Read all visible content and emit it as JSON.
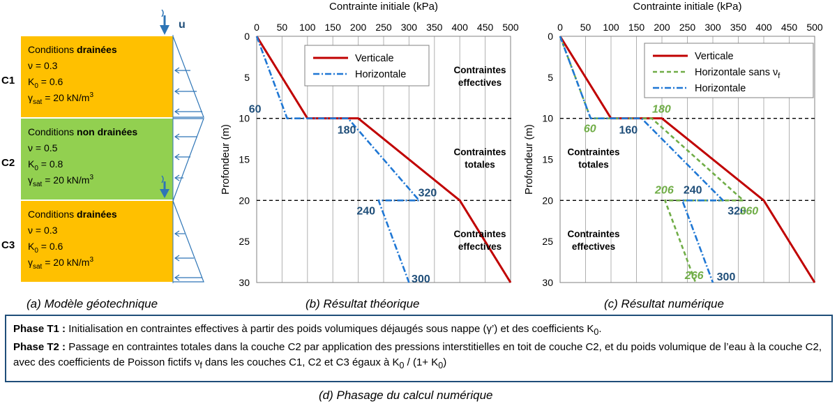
{
  "model": {
    "arrow_label": "u",
    "layers": [
      {
        "name": "C1",
        "cond_prefix": "Conditions ",
        "cond_bold": "drainées",
        "nu": "ν = 0.3",
        "k0_main": "K",
        "k0_sub": "0",
        "k0_val": " = 0.6",
        "gamma_main": "γ",
        "gamma_sub": "sat",
        "gamma_val": " = 20 kN/m",
        "gamma_sup": "3",
        "color": "#ffc000"
      },
      {
        "name": "C2",
        "cond_prefix": "Conditions ",
        "cond_bold": "non drainées",
        "nu": "ν = 0.5",
        "k0_main": "K",
        "k0_sub": "0",
        "k0_val": " = 0.8",
        "gamma_main": "γ",
        "gamma_sub": "sat",
        "gamma_val": " = 20 kN/m",
        "gamma_sup": "3",
        "color": "#92d050"
      },
      {
        "name": "C3",
        "cond_prefix": "Conditions ",
        "cond_bold": "drainées",
        "nu": "ν = 0.3",
        "k0_main": "K",
        "k0_sub": "0",
        "k0_val": " = 0.6",
        "gamma_main": "γ",
        "gamma_sub": "sat",
        "gamma_val": " = 20 kN/m",
        "gamma_sup": "3",
        "color": "#ffc000"
      }
    ]
  },
  "captions": {
    "a": "(a) Modèle géotechnique",
    "b": "(b) Résultat théorique",
    "c": "(c) Résultat numérique",
    "d": "(d) Phasage du calcul numérique"
  },
  "phases": {
    "t1_label": "Phase T1 :",
    "t1_text": " Initialisation en contraintes effectives à partir des poids volumiques déjaugés sous nappe (γ’) et des coefficients K",
    "t1_sub": "0",
    "t1_end": ".",
    "t2_label": "Phase T2 :",
    "t2_text1": " Passage en contraintes totales dans la couche C2 par application des pressions interstitielles en toit de couche C2, et du poids volumique de l’eau à la couche C2, avec des coefficients de Poisson fictifs ν",
    "t2_sub1": "f",
    "t2_text2": " dans les couches C1, C2 et C3 égaux à K",
    "t2_sub2": "0",
    "t2_text3": " / (1+ K",
    "t2_sub3": "0",
    "t2_text4": ")"
  },
  "chart_data": [
    {
      "type": "line",
      "title": "Contrainte initiale (kPa)",
      "xlabel": "Contrainte initiale (kPa)",
      "ylabel": "Profondeur (m)",
      "xlim": [
        0,
        500
      ],
      "ylim": [
        0,
        30
      ],
      "x_ticks": [
        0,
        50,
        100,
        150,
        200,
        250,
        300,
        350,
        400,
        450,
        500
      ],
      "y_ticks": [
        0,
        5,
        10,
        15,
        20,
        25,
        30
      ],
      "grid": "vertical",
      "legend_position": "top-right",
      "horizontal_reference_lines": [
        10,
        20
      ],
      "series": [
        {
          "name": "Verticale",
          "color": "#c00000",
          "style": "solid",
          "points": [
            [
              0,
              0
            ],
            [
              100,
              10
            ],
            [
              200,
              10
            ],
            [
              400,
              20
            ],
            [
              500,
              30
            ]
          ]
        },
        {
          "name": "Horizontale",
          "color": "#1f77d4",
          "style": "dashdot",
          "points": [
            [
              0,
              0
            ],
            [
              60,
              10
            ],
            [
              180,
              10
            ],
            [
              320,
              20
            ],
            [
              240,
              20
            ],
            [
              300,
              30
            ]
          ]
        }
      ],
      "annotations": [
        {
          "text": "60",
          "x": 60,
          "y": 10,
          "color": "#1f4e79"
        },
        {
          "text": "180",
          "x": 180,
          "y": 10,
          "color": "#1f4e79"
        },
        {
          "text": "320",
          "x": 320,
          "y": 20,
          "color": "#1f4e79"
        },
        {
          "text": "240",
          "x": 240,
          "y": 20,
          "color": "#1f4e79"
        },
        {
          "text": "300",
          "x": 300,
          "y": 30,
          "color": "#1f4e79"
        }
      ],
      "zones": [
        {
          "lines": [
            "Contraintes",
            "effectives"
          ],
          "y": 5,
          "bold": true
        },
        {
          "lines": [
            "Contraintes",
            "totales"
          ],
          "y": 15,
          "bold": true
        },
        {
          "lines": [
            "Contraintes",
            "effectives"
          ],
          "y": 25,
          "bold": true
        }
      ]
    },
    {
      "type": "line",
      "title": "Contrainte initiale (kPa)",
      "xlabel": "Contrainte initiale (kPa)",
      "ylabel": "Profondeur (m)",
      "xlim": [
        0,
        500
      ],
      "ylim": [
        0,
        30
      ],
      "x_ticks": [
        0,
        50,
        100,
        150,
        200,
        250,
        300,
        350,
        400,
        450,
        500
      ],
      "y_ticks": [
        0,
        5,
        10,
        15,
        20,
        25,
        30
      ],
      "grid": "vertical",
      "legend_position": "top-right",
      "horizontal_reference_lines": [
        10,
        20
      ],
      "series": [
        {
          "name": "Verticale",
          "color": "#c00000",
          "style": "solid",
          "points": [
            [
              0,
              0
            ],
            [
              100,
              10
            ],
            [
              200,
              10
            ],
            [
              400,
              20
            ],
            [
              500,
              30
            ]
          ]
        },
        {
          "name": "Horizontale sans ν",
          "name_sub": "f",
          "color": "#70ad47",
          "style": "dashed",
          "points": [
            [
              0,
              0
            ],
            [
              60,
              10
            ],
            [
              180,
              10
            ],
            [
              360,
              20
            ],
            [
              206,
              20
            ],
            [
              266,
              30
            ]
          ]
        },
        {
          "name": "Horizontale",
          "color": "#1f77d4",
          "style": "dashdot",
          "points": [
            [
              0,
              0
            ],
            [
              60,
              10
            ],
            [
              160,
              10
            ],
            [
              320,
              20
            ],
            [
              240,
              20
            ],
            [
              300,
              30
            ]
          ]
        }
      ],
      "annotations": [
        {
          "text": "180",
          "x": 180,
          "y": 10,
          "color": "#70ad47"
        },
        {
          "text": "60",
          "x": 60,
          "y": 10,
          "color": "#70ad47"
        },
        {
          "text": "160",
          "x": 160,
          "y": 10,
          "color": "#1f4e79"
        },
        {
          "text": "206",
          "x": 206,
          "y": 20,
          "color": "#70ad47"
        },
        {
          "text": "240",
          "x": 240,
          "y": 20,
          "color": "#1f4e79"
        },
        {
          "text": "320",
          "x": 320,
          "y": 20,
          "color": "#1f4e79"
        },
        {
          "text": "360",
          "x": 360,
          "y": 20,
          "color": "#70ad47"
        },
        {
          "text": "266",
          "x": 266,
          "y": 30,
          "color": "#70ad47"
        },
        {
          "text": "300",
          "x": 300,
          "y": 30,
          "color": "#1f4e79"
        }
      ],
      "zones": [
        {
          "lines": [
            "Contraintes",
            "totales"
          ],
          "y": 15,
          "bold": true
        },
        {
          "lines": [
            "Contraintes",
            "effectives"
          ],
          "y": 25,
          "bold": true
        }
      ]
    }
  ]
}
